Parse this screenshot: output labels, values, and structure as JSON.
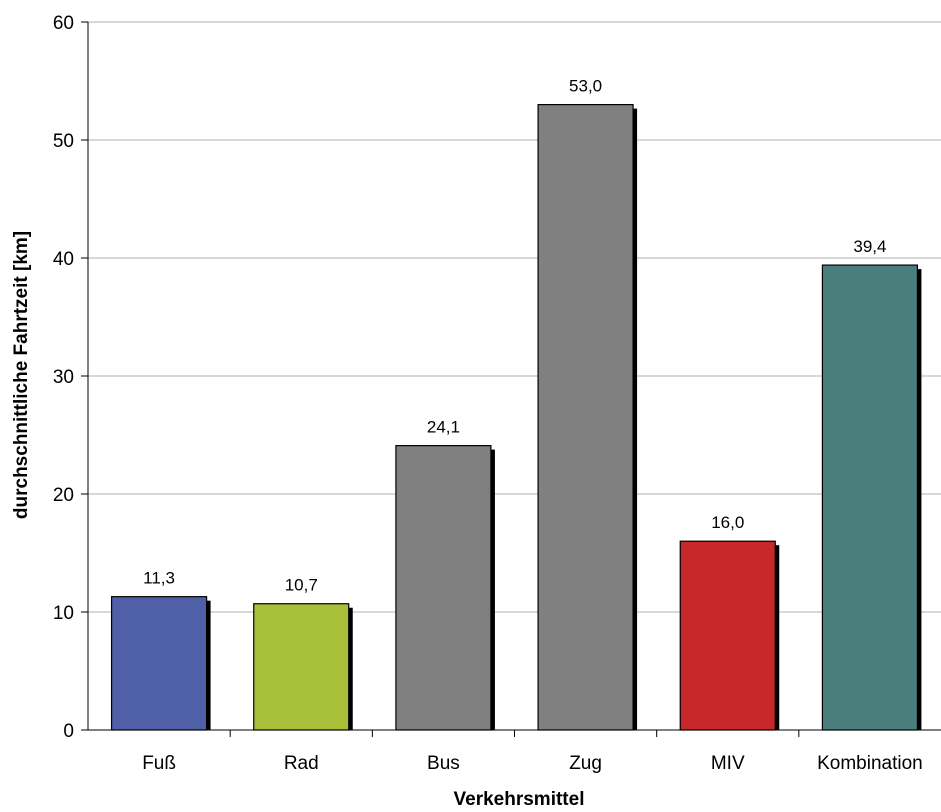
{
  "chart_data": {
    "type": "bar",
    "title": "",
    "xlabel": "Verkehrsmittel",
    "ylabel": "durchschnittliche Fahrtzeit [km]",
    "ylim": [
      0,
      60
    ],
    "yticks": [
      0,
      10,
      20,
      30,
      40,
      50,
      60
    ],
    "grid": true,
    "legend": "none",
    "categories": [
      "Fuß",
      "Rad",
      "Bus",
      "Zug",
      "MIV",
      "Kombination"
    ],
    "values": [
      11.3,
      10.7,
      24.1,
      53.0,
      16.0,
      39.4
    ],
    "value_labels": [
      "11,3",
      "10,7",
      "24,1",
      "53,0",
      "16,0",
      "39,4"
    ],
    "colors": [
      "#4F5FA8",
      "#A9C03A",
      "#808080",
      "#808080",
      "#C8282A",
      "#4A7E7C"
    ]
  }
}
